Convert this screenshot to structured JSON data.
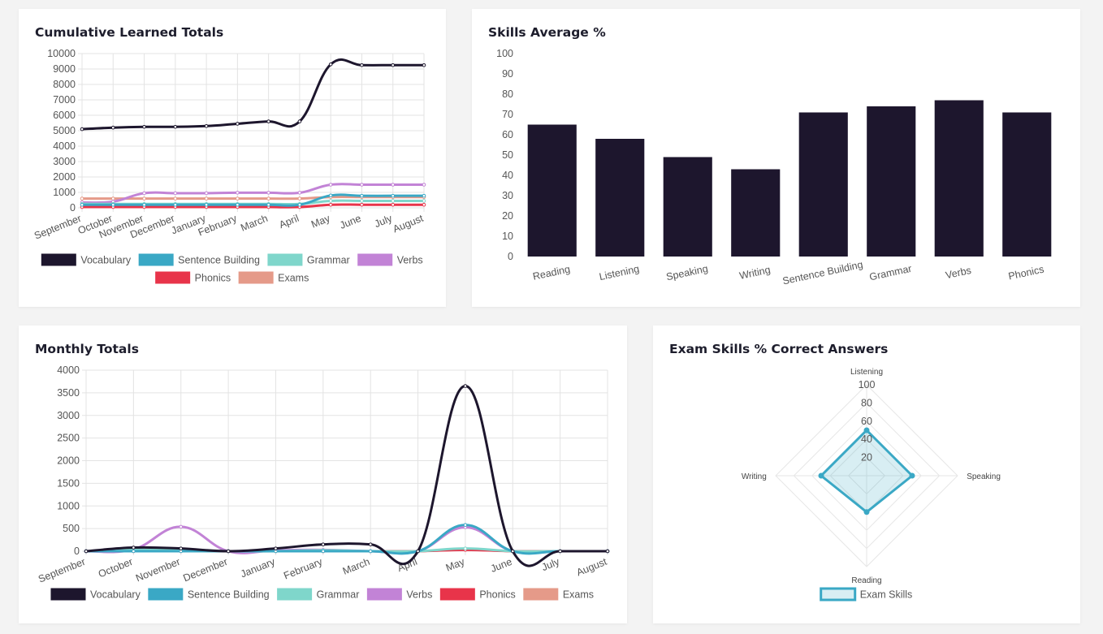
{
  "palette": {
    "vocabulary": "#1d162d",
    "sentence_building": "#3aa8c5",
    "grammar": "#7fd6cb",
    "verbs": "#c283d6",
    "phonics": "#e8344a",
    "exams": "#e59a89",
    "bar": "#1d162d",
    "grid": "#e3e3e3",
    "axis_text": "#555555"
  },
  "cards": {
    "cumulative_title": "Cumulative Learned Totals",
    "skills_title": "Skills Average %",
    "monthly_title": "Monthly Totals",
    "exam_title": "Exam Skills % Correct Answers"
  },
  "chart_data": [
    {
      "id": "cumulative",
      "type": "line",
      "title": "Cumulative Learned Totals",
      "categories": [
        "September",
        "October",
        "November",
        "December",
        "January",
        "February",
        "March",
        "April",
        "May",
        "June",
        "July",
        "August"
      ],
      "ylim": [
        0,
        10000
      ],
      "yticks": [
        0,
        1000,
        2000,
        3000,
        4000,
        5000,
        6000,
        7000,
        8000,
        9000,
        10000
      ],
      "grid": true,
      "legend_position": "bottom",
      "series": [
        {
          "name": "Vocabulary",
          "color_key": "vocabulary",
          "values": [
            5100,
            5200,
            5250,
            5250,
            5300,
            5450,
            5600,
            5600,
            9300,
            9250,
            9250,
            9250
          ]
        },
        {
          "name": "Sentence Building",
          "color_key": "sentence_building",
          "values": [
            200,
            200,
            200,
            200,
            200,
            200,
            200,
            200,
            800,
            780,
            780,
            780
          ]
        },
        {
          "name": "Grammar",
          "color_key": "grammar",
          "values": [
            250,
            250,
            250,
            250,
            250,
            250,
            250,
            250,
            450,
            450,
            450,
            450
          ]
        },
        {
          "name": "Verbs",
          "color_key": "verbs",
          "values": [
            350,
            400,
            950,
            950,
            950,
            980,
            980,
            980,
            1500,
            1500,
            1500,
            1500
          ]
        },
        {
          "name": "Phonics",
          "color_key": "phonics",
          "values": [
            50,
            50,
            50,
            50,
            50,
            50,
            50,
            50,
            200,
            200,
            200,
            200
          ]
        },
        {
          "name": "Exams",
          "color_key": "exams",
          "values": [
            600,
            600,
            600,
            600,
            600,
            600,
            600,
            600,
            700,
            700,
            700,
            700
          ]
        }
      ]
    },
    {
      "id": "skills",
      "type": "bar",
      "title": "Skills Average %",
      "categories": [
        "Reading",
        "Listening",
        "Speaking",
        "Writing",
        "Sentence Building",
        "Grammar",
        "Verbs",
        "Phonics"
      ],
      "values": [
        65,
        58,
        49,
        43,
        71,
        74,
        77,
        71
      ],
      "ylim": [
        0,
        100
      ],
      "yticks": [
        0,
        10,
        20,
        30,
        40,
        50,
        60,
        70,
        80,
        90,
        100
      ],
      "grid": false
    },
    {
      "id": "monthly",
      "type": "line",
      "title": "Monthly Totals",
      "categories": [
        "September",
        "October",
        "November",
        "December",
        "January",
        "February",
        "March",
        "April",
        "May",
        "June",
        "July",
        "August"
      ],
      "ylim": [
        0,
        4000
      ],
      "yticks": [
        0,
        500,
        1000,
        1500,
        2000,
        2500,
        3000,
        3500,
        4000
      ],
      "grid": true,
      "legend_position": "bottom",
      "series": [
        {
          "name": "Vocabulary",
          "color_key": "vocabulary",
          "values": [
            0,
            80,
            60,
            0,
            60,
            150,
            150,
            0,
            3650,
            0,
            0,
            0
          ]
        },
        {
          "name": "Sentence Building",
          "color_key": "sentence_building",
          "values": [
            0,
            0,
            0,
            0,
            0,
            0,
            0,
            0,
            580,
            0,
            0,
            0
          ]
        },
        {
          "name": "Grammar",
          "color_key": "grammar",
          "values": [
            0,
            30,
            20,
            0,
            0,
            20,
            0,
            0,
            60,
            0,
            0,
            0
          ]
        },
        {
          "name": "Verbs",
          "color_key": "verbs",
          "values": [
            0,
            40,
            540,
            0,
            20,
            30,
            0,
            0,
            530,
            0,
            0,
            0
          ]
        },
        {
          "name": "Phonics",
          "color_key": "phonics",
          "values": [
            0,
            0,
            0,
            0,
            0,
            0,
            0,
            0,
            30,
            0,
            0,
            0
          ]
        },
        {
          "name": "Exams",
          "color_key": "exams",
          "values": [
            0,
            20,
            10,
            0,
            0,
            0,
            0,
            0,
            50,
            0,
            0,
            0
          ]
        }
      ]
    },
    {
      "id": "exam",
      "type": "radar",
      "title": "Exam Skills % Correct Answers",
      "axes": [
        "Listening",
        "Speaking",
        "Reading",
        "Writing"
      ],
      "values": [
        50,
        50,
        40,
        50
      ],
      "rlim": [
        0,
        100
      ],
      "rticks": [
        20,
        40,
        60,
        80,
        100
      ],
      "legend_position": "bottom",
      "series_name": "Exam Skills",
      "color_key": "sentence_building"
    }
  ]
}
